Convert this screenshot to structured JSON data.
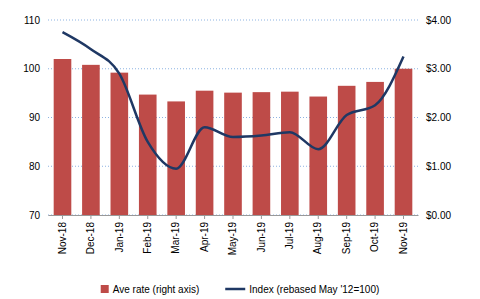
{
  "chart_data": {
    "type": "bar",
    "categories": [
      "Nov-18",
      "Dec-18",
      "Jan-19",
      "Feb-19",
      "Mar-19",
      "Apr-19",
      "May-19",
      "Jun-19",
      "Jul-19",
      "Aug-19",
      "Sep-19",
      "Oct-19",
      "Nov-19"
    ],
    "series": [
      {
        "name": "Ave rate (right axis)",
        "type": "bar",
        "axis": "y2",
        "color": "#be4b48",
        "values": [
          3.2,
          3.08,
          2.92,
          2.47,
          2.33,
          2.55,
          2.51,
          2.52,
          2.53,
          2.43,
          2.65,
          2.73,
          3.0
        ]
      },
      {
        "name": "Index (rebased May '12=100)",
        "type": "line",
        "color": "#1f3864",
        "line_style": "solid",
        "values": [
          107.5,
          104,
          99,
          85,
          79.5,
          88,
          86,
          86.3,
          87,
          83.5,
          90.5,
          92.5,
          102.5
        ]
      }
    ],
    "ylim": [
      70,
      110
    ],
    "yticks": [
      70,
      80,
      90,
      100,
      110
    ],
    "y2lim": [
      0,
      4
    ],
    "y2ticks": [
      {
        "value": 0,
        "label": "$0.00"
      },
      {
        "value": 1,
        "label": "$1.00"
      },
      {
        "value": 2,
        "label": "$2.00"
      },
      {
        "value": 3,
        "label": "$3.00"
      },
      {
        "value": 4,
        "label": "$4.00"
      }
    ],
    "grid": true,
    "legend": "bottom"
  }
}
